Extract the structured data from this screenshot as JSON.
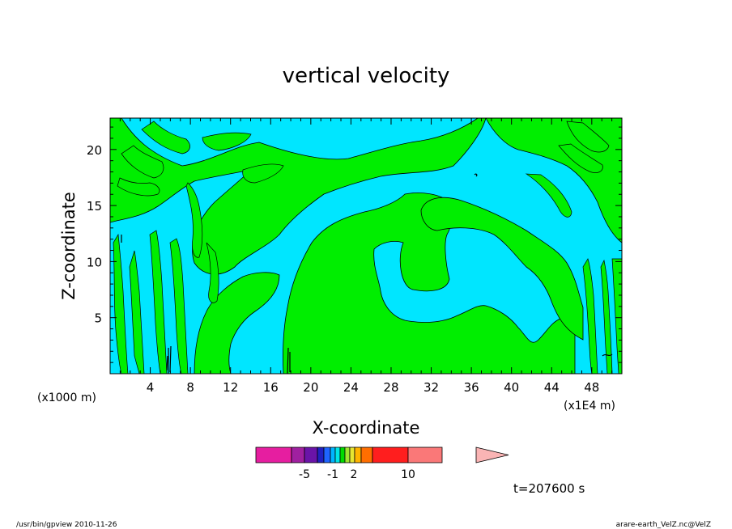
{
  "chart_data": {
    "type": "heatmap",
    "title": "vertical velocity",
    "xlabel": "X-coordinate",
    "ylabel": "Z-coordinate",
    "x_unit_left": "(x1000 m)",
    "x_unit_right": "(x1E4 m)",
    "xlim": [
      0,
      51
    ],
    "ylim": [
      0,
      22.8
    ],
    "x_ticks": [
      4,
      8,
      12,
      16,
      20,
      24,
      28,
      32,
      36,
      40,
      44,
      48
    ],
    "y_ticks": [
      5,
      10,
      15,
      20
    ],
    "time_label": "t=207600 s",
    "colorbar": {
      "tick_labels": [
        {
          "label": "-5",
          "value": -5
        },
        {
          "label": "-1",
          "value": -1
        },
        {
          "label": "2",
          "value": 2
        },
        {
          "label": "10",
          "value": 10
        }
      ],
      "colors": [
        "#e61ea0",
        "#a020a0",
        "#6a14a8",
        "#2020c0",
        "#1e64ff",
        "#00b4ff",
        "#00e6e6",
        "#00dc00",
        "#a0e632",
        "#e6e632",
        "#ffb400",
        "#ff6e00",
        "#ff1e1e",
        "#fa7878",
        "#fab4b4"
      ]
    },
    "field_colors": {
      "negative": "#00e6ff",
      "positive": "#00ee00",
      "contour": "#000000"
    }
  },
  "footer": {
    "left": "/usr/bin/gpview  2010-11-26",
    "right": "arare-earth_VelZ.nc@VelZ"
  }
}
